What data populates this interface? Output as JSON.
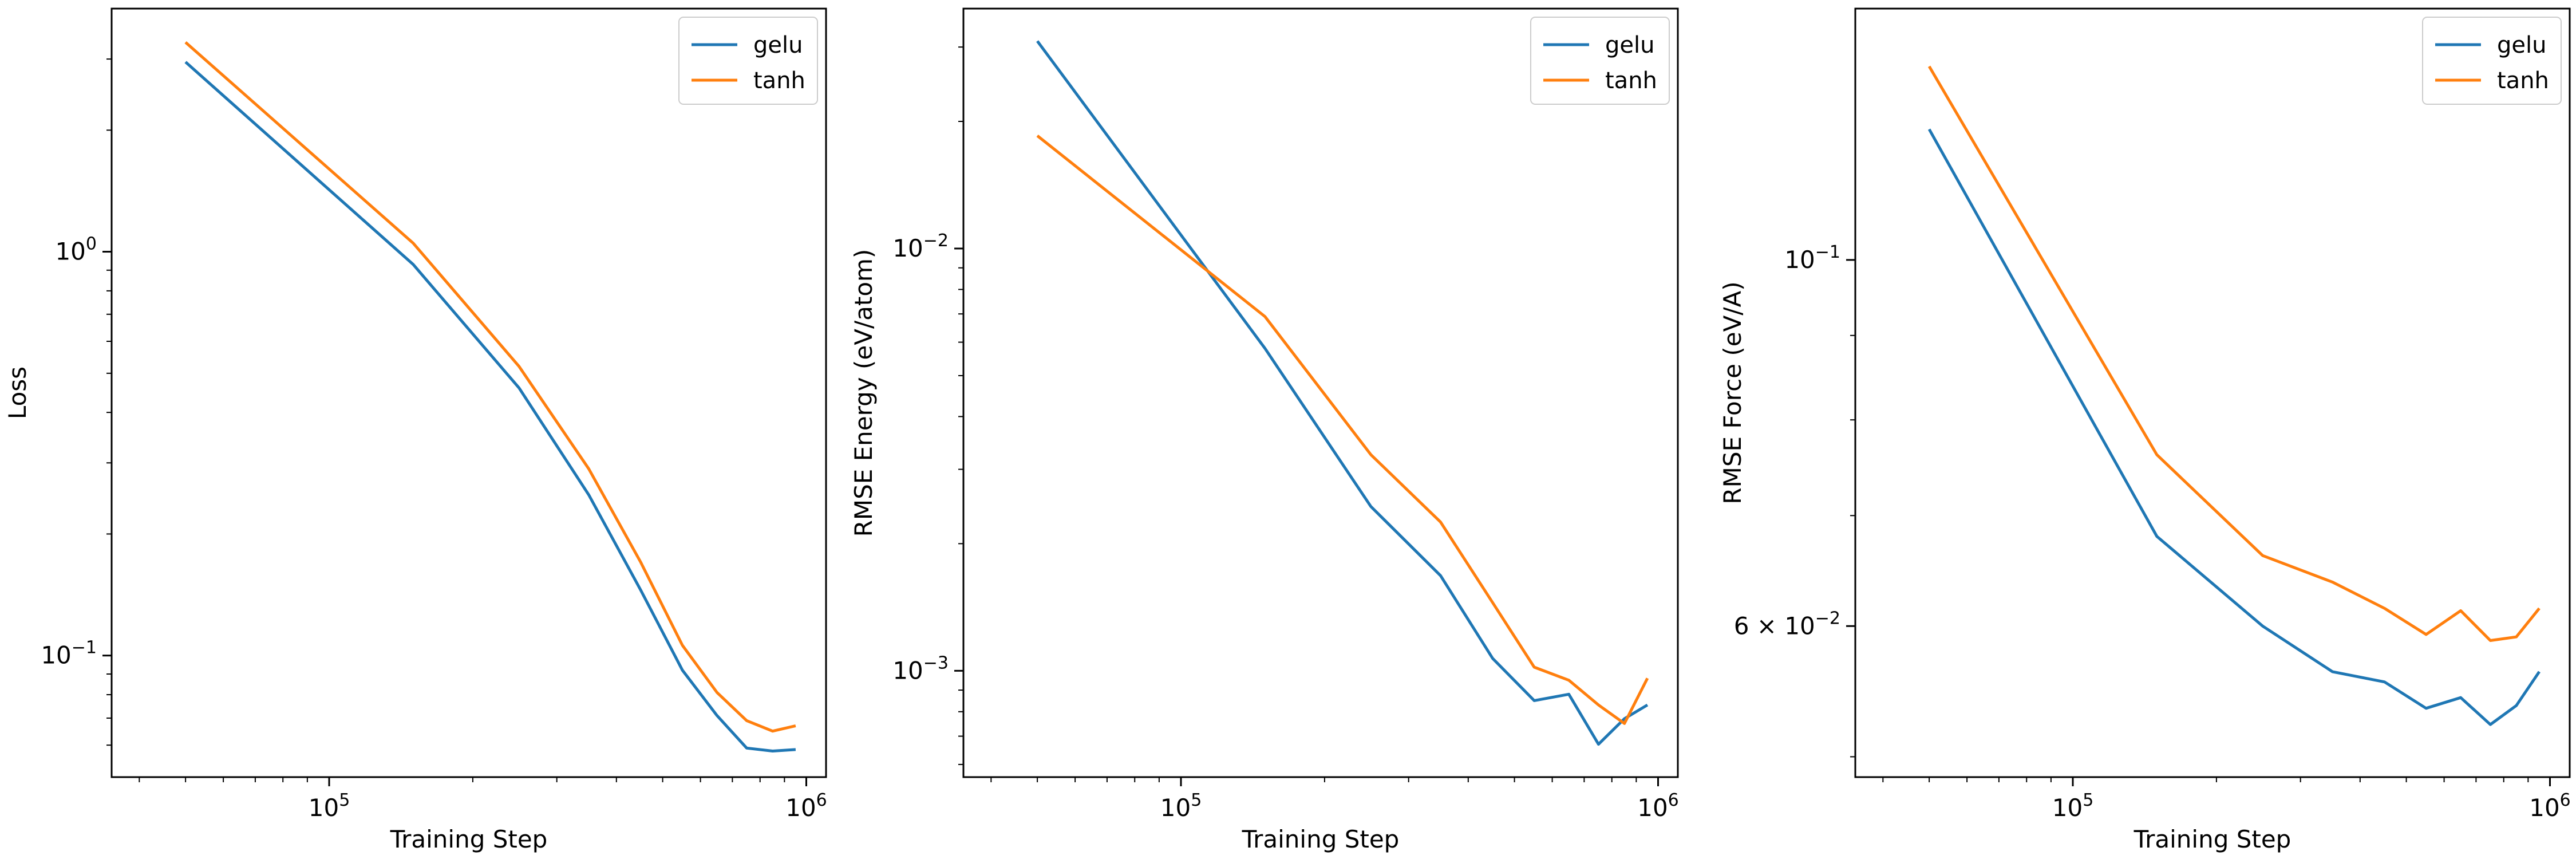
{
  "colors": {
    "gelu": "#1f77b4",
    "tanh": "#ff7f0e",
    "axis": "#000000"
  },
  "legend": {
    "placement": "top-right",
    "entries": [
      "gelu",
      "tanh"
    ]
  },
  "chart_data": [
    {
      "type": "line",
      "xlabel": "Training Step",
      "ylabel": "Loss",
      "xscale": "log",
      "yscale": "log",
      "xlim": [
        35000,
        1100000
      ],
      "ylim": [
        0.05,
        4.0
      ],
      "x_ticks": [
        {
          "value": 100000,
          "base": "10",
          "exp": "5"
        },
        {
          "value": 1000000,
          "base": "10",
          "exp": "6"
        }
      ],
      "y_ticks": [
        {
          "value": 1.0,
          "base": "10",
          "exp": "0"
        },
        {
          "value": 0.1,
          "base": "10",
          "exp": "−1"
        }
      ],
      "series": [
        {
          "name": "gelu",
          "x": [
            50000,
            150000,
            250000,
            350000,
            450000,
            550000,
            650000,
            750000,
            850000,
            950000
          ],
          "y": [
            2.95,
            0.93,
            0.46,
            0.25,
            0.145,
            0.092,
            0.071,
            0.059,
            0.058,
            0.0585
          ]
        },
        {
          "name": "tanh",
          "x": [
            50000,
            150000,
            250000,
            350000,
            450000,
            550000,
            650000,
            750000,
            850000,
            950000
          ],
          "y": [
            3.3,
            1.05,
            0.52,
            0.29,
            0.17,
            0.106,
            0.081,
            0.069,
            0.065,
            0.067
          ]
        }
      ]
    },
    {
      "type": "line",
      "xlabel": "Training Step",
      "ylabel": "RMSE Energy (eV/atom)",
      "xscale": "log",
      "yscale": "log",
      "xlim": [
        35000,
        1100000
      ],
      "ylim": [
        0.00056,
        0.037
      ],
      "x_ticks": [
        {
          "value": 100000,
          "base": "10",
          "exp": "5"
        },
        {
          "value": 1000000,
          "base": "10",
          "exp": "6"
        }
      ],
      "y_ticks": [
        {
          "value": 0.01,
          "base": "10",
          "exp": "−2"
        },
        {
          "value": 0.001,
          "base": "10",
          "exp": "−3"
        }
      ],
      "series": [
        {
          "name": "gelu",
          "x": [
            50000,
            150000,
            250000,
            350000,
            450000,
            550000,
            650000,
            750000,
            850000,
            950000
          ],
          "y": [
            0.031,
            0.0058,
            0.00245,
            0.00168,
            0.00107,
            0.00085,
            0.00088,
            0.00067,
            0.00077,
            0.00083
          ]
        },
        {
          "name": "tanh",
          "x": [
            50000,
            150000,
            250000,
            350000,
            450000,
            550000,
            650000,
            750000,
            850000,
            950000
          ],
          "y": [
            0.0185,
            0.0069,
            0.00325,
            0.00225,
            0.00145,
            0.00102,
            0.00095,
            0.00083,
            0.00075,
            0.00096
          ]
        }
      ]
    },
    {
      "type": "line",
      "xlabel": "Training Step",
      "ylabel": "RMSE Force (eV/A)",
      "xscale": "log",
      "yscale": "log",
      "xlim": [
        35000,
        1100000
      ],
      "ylim": [
        0.0486,
        0.142
      ],
      "x_ticks": [
        {
          "value": 100000,
          "base": "10",
          "exp": "5"
        },
        {
          "value": 1000000,
          "base": "10",
          "exp": "6"
        }
      ],
      "y_ticks": [
        {
          "value": 0.1,
          "base": "10",
          "exp": "−1"
        },
        {
          "value": 0.06,
          "base": "6 × 10",
          "exp": "−2"
        }
      ],
      "series": [
        {
          "name": "gelu",
          "x": [
            50000,
            150000,
            250000,
            350000,
            450000,
            550000,
            650000,
            750000,
            850000,
            950000
          ],
          "y": [
            0.12,
            0.068,
            0.06,
            0.0563,
            0.0555,
            0.0535,
            0.0543,
            0.0523,
            0.0537,
            0.0563
          ]
        },
        {
          "name": "tanh",
          "x": [
            50000,
            150000,
            250000,
            350000,
            450000,
            550000,
            650000,
            750000,
            850000,
            950000
          ],
          "y": [
            0.131,
            0.0762,
            0.0662,
            0.0638,
            0.0615,
            0.0593,
            0.0613,
            0.0588,
            0.0591,
            0.0615
          ]
        }
      ]
    }
  ]
}
